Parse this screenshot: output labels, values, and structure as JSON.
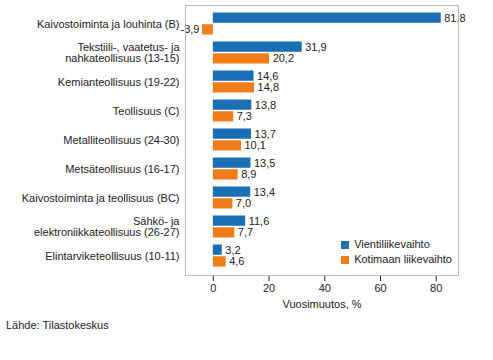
{
  "chart_data": {
    "type": "bar",
    "orientation": "horizontal",
    "caption": "Lähde: Tilastokeskus",
    "x_label": "Vuosimuutos, %",
    "categories": [
      "Kaivostoiminta ja louhinta (B)",
      "Tekstiili-, vaatetus- ja\nnahkateollisuus (13-15)",
      "Kemianteollisuus (19-22)",
      "Teollisuus (C)",
      "Metalliteollisuus (24-30)",
      "Metsäteollisuus (16-17)",
      "Kaivostoiminta ja teollisuus (BC)",
      "Sähkö- ja\nelektroniikkateollisuus (26-27)",
      "Elintarviketeollisuus (10-11)"
    ],
    "series": [
      {
        "name": "Vientiliikevaihto",
        "color": "#1a6fb5",
        "values": [
          81.8,
          31.9,
          14.6,
          13.8,
          13.7,
          13.5,
          13.4,
          11.6,
          3.2
        ],
        "value_labels": [
          "81,8",
          "31,9",
          "14,6",
          "13,8",
          "13,7",
          "13,5",
          "13,4",
          "11,6",
          "3,2"
        ]
      },
      {
        "name": "Kotimaan liikevaihto",
        "color": "#f07d1a",
        "values": [
          -3.9,
          20.2,
          14.8,
          7.3,
          10.1,
          8.9,
          7.0,
          7.7,
          4.6
        ],
        "value_labels": [
          "-3,9",
          "20,2",
          "14,8",
          "7,3",
          "10,1",
          "8,9",
          "7,0",
          "7,7",
          "4,6"
        ]
      }
    ],
    "xlim": [
      -10,
      88
    ],
    "xticks": [
      0,
      20,
      40,
      60,
      80
    ],
    "grid": false,
    "legend": "lower right",
    "data_labels": true
  }
}
